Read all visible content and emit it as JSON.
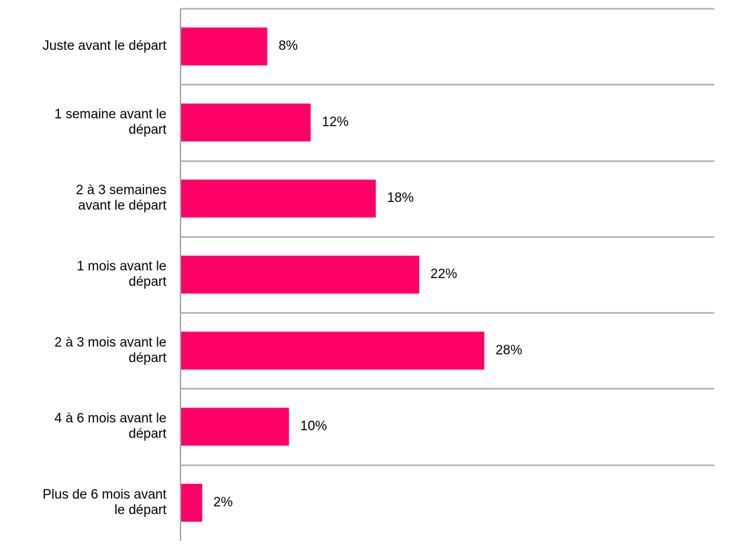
{
  "chart_data": {
    "type": "bar",
    "orientation": "horizontal",
    "categories": [
      [
        "Juste avant le départ"
      ],
      [
        "1 semaine avant le",
        "départ"
      ],
      [
        "2 à 3 semaines",
        "avant le départ"
      ],
      [
        "1 mois avant le",
        "départ"
      ],
      [
        "2 à 3 mois avant le",
        "départ"
      ],
      [
        "4 à 6 mois avant le",
        "départ"
      ],
      [
        "Plus de 6 mois avant",
        "le départ"
      ]
    ],
    "values": [
      8,
      12,
      18,
      22,
      28,
      10,
      2
    ],
    "data_labels": [
      "8%",
      "12%",
      "18%",
      "22%",
      "28%",
      "10%",
      "2%"
    ],
    "value_unit": "%",
    "bar_color": "#ff0066",
    "grid_color": "#a6a6a6",
    "grid": true,
    "legend": "none",
    "title": "",
    "xlabel": "",
    "ylabel": ""
  }
}
